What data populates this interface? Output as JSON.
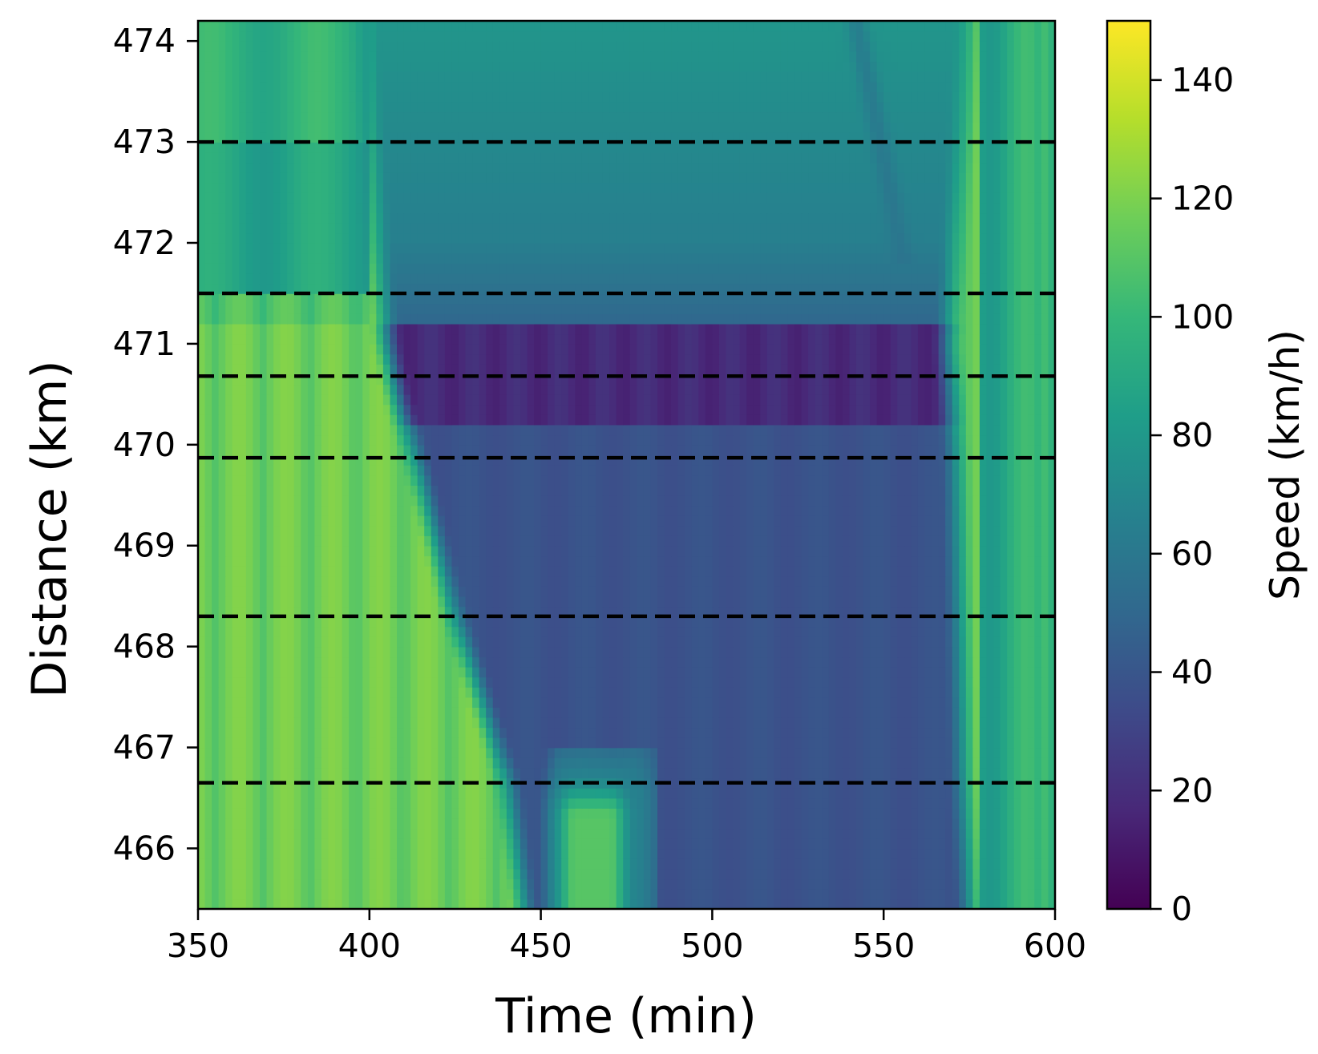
{
  "chart_data": {
    "type": "heatmap",
    "title": "",
    "xlabel": "Time (min)",
    "ylabel": "Distance (km)",
    "xlim": [
      350,
      600
    ],
    "ylim": [
      465.4,
      474.2
    ],
    "xticks": [
      350,
      400,
      450,
      500,
      550,
      600
    ],
    "yticks": [
      466,
      467,
      468,
      469,
      470,
      471,
      472,
      473,
      474
    ],
    "colorbar": {
      "label": "Speed (km/h)",
      "colormap": "viridis",
      "range": [
        0,
        150
      ],
      "ticks": [
        0,
        20,
        40,
        60,
        80,
        100,
        120,
        140
      ]
    },
    "detector_lines_km": [
      466.65,
      468.3,
      469.87,
      470.68,
      471.5,
      473.0
    ],
    "congestion_region": {
      "description_fields": "time boundaries at listed distances",
      "distance_km": [
        465.4,
        466.7,
        468.3,
        469.9,
        470.5,
        471.0,
        472.0,
        473.0,
        474.2
      ],
      "onset_min": [
        445,
        440,
        425,
        413,
        408,
        405,
        402,
        400,
        398
      ],
      "clearance_min": [
        575,
        573,
        572,
        571,
        570,
        569,
        571,
        573,
        575
      ],
      "free_flow_speed_kmh": 118,
      "upper_section_speed_kmh": 78,
      "queue_speed_kmh": 38,
      "bottleneck_speed_kmh": 18
    },
    "features": {
      "downstream_moving_wave": {
        "start": [
          542,
          474.2
        ],
        "end": [
          556,
          471.8
        ],
        "speed_kmh": 55
      },
      "recovery_patch": {
        "time_min": [
          458,
          472
        ],
        "distance_km": [
          465.4,
          466.6
        ],
        "speed_kmh": 110
      }
    }
  }
}
